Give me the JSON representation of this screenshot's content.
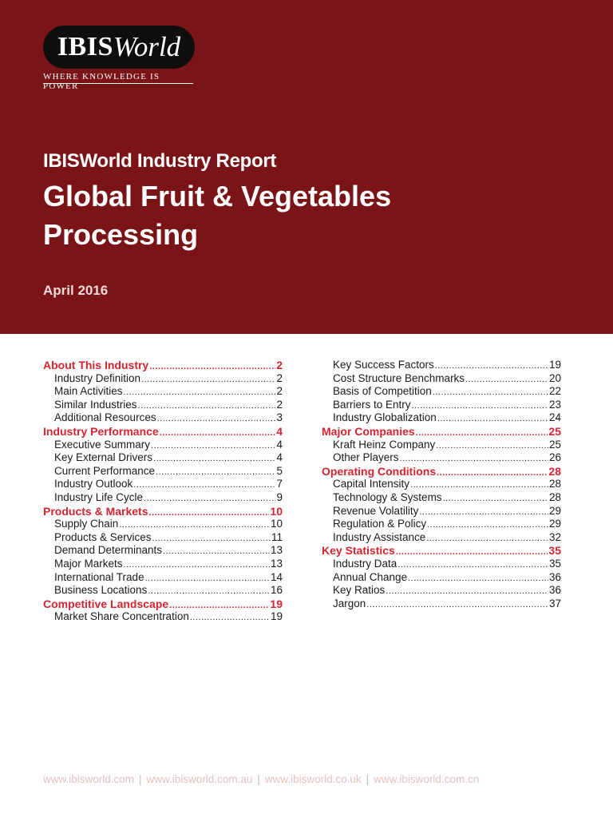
{
  "brand": {
    "logo_bold": "IBIS",
    "logo_italic": "World",
    "tagline": "Where knowledge is power"
  },
  "header": {
    "report_label": "IBISWorld Industry Report",
    "title": "Global Fruit & Vegetables Processing",
    "date": "April 2016"
  },
  "toc_left": [
    {
      "type": "section",
      "label": "About This Industry",
      "page": "2"
    },
    {
      "type": "sub",
      "label": "Industry Definition",
      "page": "2"
    },
    {
      "type": "sub",
      "label": "Main Activities",
      "page": "2"
    },
    {
      "type": "sub",
      "label": "Similar Industries",
      "page": "2"
    },
    {
      "type": "sub",
      "label": "Additional Resources",
      "page": "3"
    },
    {
      "type": "section",
      "label": "Industry Performance",
      "page": "4"
    },
    {
      "type": "sub",
      "label": "Executive Summary",
      "page": "4"
    },
    {
      "type": "sub",
      "label": "Key External Drivers",
      "page": "4"
    },
    {
      "type": "sub",
      "label": "Current Performance",
      "page": "5"
    },
    {
      "type": "sub",
      "label": "Industry Outlook",
      "page": "7"
    },
    {
      "type": "sub",
      "label": "Industry Life Cycle",
      "page": "9"
    },
    {
      "type": "section",
      "label": "Products & Markets",
      "page": "10"
    },
    {
      "type": "sub",
      "label": "Supply Chain",
      "page": "10"
    },
    {
      "type": "sub",
      "label": "Products & Services",
      "page": "11"
    },
    {
      "type": "sub",
      "label": "Demand Determinants",
      "page": "13"
    },
    {
      "type": "sub",
      "label": "Major Markets",
      "page": "13"
    },
    {
      "type": "sub",
      "label": "International Trade",
      "page": "14"
    },
    {
      "type": "sub",
      "label": "Business Locations",
      "page": "16"
    },
    {
      "type": "section",
      "label": "Competitive Landscape",
      "page": "19"
    },
    {
      "type": "sub",
      "label": "Market Share Concentration",
      "page": "19"
    }
  ],
  "toc_right": [
    {
      "type": "sub",
      "label": "Key Success Factors",
      "page": "19"
    },
    {
      "type": "sub",
      "label": "Cost Structure Benchmarks",
      "page": "20"
    },
    {
      "type": "sub",
      "label": "Basis of Competition",
      "page": "22"
    },
    {
      "type": "sub",
      "label": "Barriers to Entry",
      "page": "23"
    },
    {
      "type": "sub",
      "label": "Industry Globalization",
      "page": "24"
    },
    {
      "type": "section",
      "label": "Major Companies",
      "page": "25"
    },
    {
      "type": "sub",
      "label": "Kraft Heinz Company",
      "page": "25"
    },
    {
      "type": "sub",
      "label": "Other Players",
      "page": "26"
    },
    {
      "type": "section",
      "label": "Operating Conditions",
      "page": "28"
    },
    {
      "type": "sub",
      "label": "Capital Intensity",
      "page": "28"
    },
    {
      "type": "sub",
      "label": "Technology & Systems",
      "page": "28"
    },
    {
      "type": "sub",
      "label": "Revenue Volatility",
      "page": "29"
    },
    {
      "type": "sub",
      "label": "Regulation & Policy",
      "page": "29"
    },
    {
      "type": "sub",
      "label": "Industry Assistance",
      "page": "32"
    },
    {
      "type": "section",
      "label": "Key Statistics",
      "page": "35"
    },
    {
      "type": "sub",
      "label": "Industry Data",
      "page": "35"
    },
    {
      "type": "sub",
      "label": "Annual Change",
      "page": "36"
    },
    {
      "type": "sub",
      "label": "Key Ratios",
      "page": "36"
    },
    {
      "type": "sub",
      "label": "Jargon",
      "page": "37"
    }
  ],
  "footer": {
    "links": [
      "www.ibisworld.com",
      "www.ibisworld.com.au",
      "www.ibisworld.co.uk",
      "www.ibisworld.com.cn"
    ],
    "separator": "|"
  },
  "colors": {
    "header_bg": "#7a1416",
    "section_red": "#d62430",
    "footer_link": "#e8c0c0"
  }
}
